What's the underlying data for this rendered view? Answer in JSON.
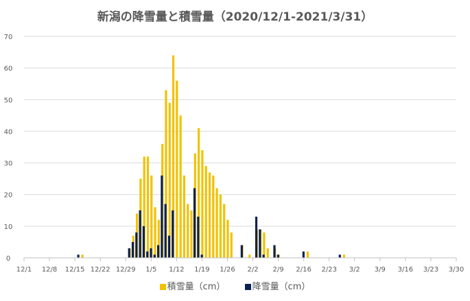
{
  "chart_data": {
    "type": "bar",
    "title": "新潟の降雪量と積雪量（2020/12/1-2021/3/31）",
    "xlabel": "",
    "ylabel": "",
    "ylim": [
      0,
      70
    ],
    "y_ticks": [
      "0",
      "10",
      "20",
      "30",
      "40",
      "50",
      "60",
      "70"
    ],
    "x_ticks": [
      "12/1",
      "12/8",
      "12/15",
      "12/22",
      "12/29",
      "1/5",
      "1/12",
      "1/19",
      "1/26",
      "2/2",
      "2/9",
      "2/16",
      "2/23",
      "3/2",
      "3/9",
      "3/16",
      "3/23",
      "3/30"
    ],
    "grid": true,
    "legend_position": "bottom",
    "series": [
      {
        "name": "積雪量（cm）",
        "color": "#F2C200",
        "points": [
          [
            "12/17",
            1
          ],
          [
            "12/30",
            3
          ],
          [
            "12/31",
            7
          ],
          [
            "1/1",
            14
          ],
          [
            "1/2",
            25
          ],
          [
            "1/3",
            32
          ],
          [
            "1/4",
            32
          ],
          [
            "1/5",
            26
          ],
          [
            "1/6",
            16
          ],
          [
            "1/7",
            12
          ],
          [
            "1/8",
            36
          ],
          [
            "1/9",
            53
          ],
          [
            "1/10",
            49
          ],
          [
            "1/11",
            64
          ],
          [
            "1/12",
            56
          ],
          [
            "1/13",
            45
          ],
          [
            "1/14",
            26
          ],
          [
            "1/15",
            17
          ],
          [
            "1/16",
            15
          ],
          [
            "1/17",
            33
          ],
          [
            "1/18",
            41
          ],
          [
            "1/19",
            34
          ],
          [
            "1/20",
            29
          ],
          [
            "1/21",
            27
          ],
          [
            "1/22",
            26
          ],
          [
            "1/23",
            22
          ],
          [
            "1/24",
            20
          ],
          [
            "1/25",
            17
          ],
          [
            "1/26",
            12
          ],
          [
            "1/27",
            8
          ],
          [
            "1/30",
            4
          ],
          [
            "2/1",
            1
          ],
          [
            "2/3",
            9
          ],
          [
            "2/4",
            9
          ],
          [
            "2/5",
            8
          ],
          [
            "2/6",
            3
          ],
          [
            "2/8",
            3
          ],
          [
            "2/9",
            1
          ],
          [
            "2/17",
            2
          ],
          [
            "2/27",
            1
          ]
        ]
      },
      {
        "name": "降雪量（cm）",
        "color": "#0B2152",
        "points": [
          [
            "12/16",
            1
          ],
          [
            "12/30",
            3
          ],
          [
            "12/31",
            5
          ],
          [
            "1/1",
            8
          ],
          [
            "1/2",
            15
          ],
          [
            "1/3",
            10
          ],
          [
            "1/4",
            2
          ],
          [
            "1/5",
            3
          ],
          [
            "1/6",
            1
          ],
          [
            "1/7",
            4
          ],
          [
            "1/8",
            26
          ],
          [
            "1/9",
            17
          ],
          [
            "1/10",
            7
          ],
          [
            "1/11",
            15
          ],
          [
            "1/17",
            22
          ],
          [
            "1/18",
            13
          ],
          [
            "1/19",
            1
          ],
          [
            "1/30",
            4
          ],
          [
            "2/3",
            13
          ],
          [
            "2/4",
            9
          ],
          [
            "2/5",
            1
          ],
          [
            "2/8",
            4
          ],
          [
            "2/9",
            1
          ],
          [
            "2/16",
            2
          ],
          [
            "2/26",
            1
          ]
        ]
      }
    ]
  }
}
